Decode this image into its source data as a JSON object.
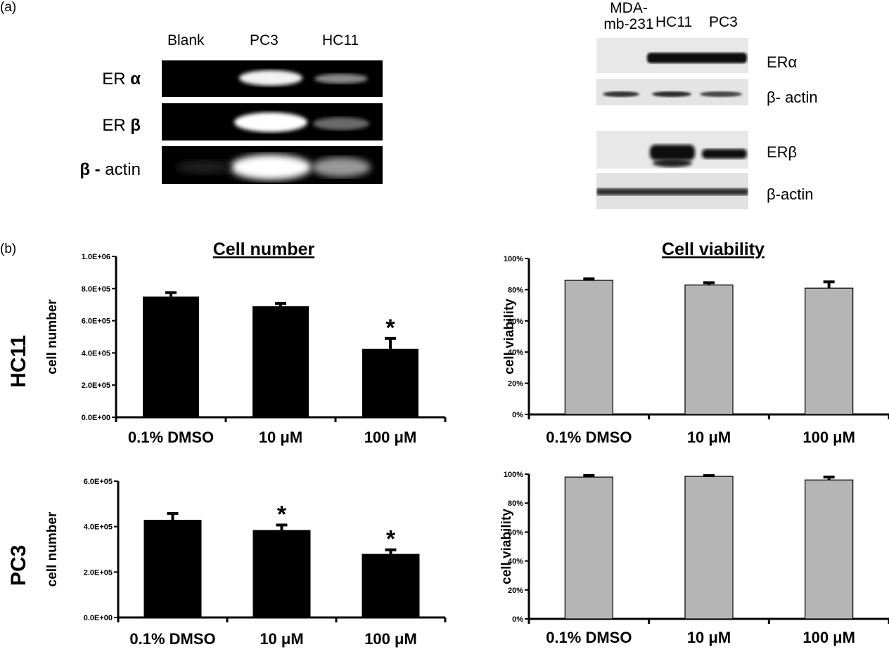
{
  "panel_a_label": "(a)",
  "panel_b_label": "(b)",
  "gel": {
    "lanes": [
      "Blank",
      "PC3",
      "HC11"
    ],
    "rows": [
      {
        "prefix": "ER",
        "greek": "α",
        "suffix": ""
      },
      {
        "prefix": "ER",
        "greek": "β",
        "suffix": ""
      },
      {
        "prefix": "",
        "greek": "β -",
        "suffix": " actin"
      }
    ]
  },
  "western": {
    "lanes": [
      "MDA-\nmb-231",
      "HC11",
      "PC3"
    ],
    "rows": [
      "ERα",
      "β- actin",
      "ERβ",
      "β-actin"
    ]
  },
  "row_labels": [
    "HC11",
    "PC3"
  ],
  "chart_data": [
    {
      "type": "bar",
      "title": "Cell number",
      "ylabel": "cell number",
      "categories": [
        "0.1% DMSO",
        "10 μM",
        "100 μM"
      ],
      "values": [
        750000,
        690000,
        425000
      ],
      "errors": [
        25000,
        18000,
        65000
      ],
      "significant": [
        false,
        false,
        true
      ],
      "ylim": [
        0,
        1000000
      ],
      "yticks": [
        "0.0E+00",
        "2.0E+05",
        "4.0E+05",
        "6.0E+05",
        "8.0E+05",
        "1.0E+06"
      ],
      "color": "#000000"
    },
    {
      "type": "bar",
      "title": "Cell viability",
      "ylabel": "cell viability",
      "categories": [
        "0.1% DMSO",
        "10 μM",
        "100 μM"
      ],
      "values": [
        0.86,
        0.83,
        0.81
      ],
      "errors": [
        0.01,
        0.015,
        0.04
      ],
      "significant": [
        false,
        false,
        false
      ],
      "ylim": [
        0,
        1
      ],
      "yticks": [
        "0%",
        "20%",
        "40%",
        "60%",
        "80%",
        "100%"
      ],
      "color": "#b5b5b5"
    },
    {
      "type": "bar",
      "title": "",
      "ylabel": "cell number",
      "categories": [
        "0.1% DMSO",
        "10 μM",
        "100 μM"
      ],
      "values": [
        430000,
        385000,
        280000
      ],
      "errors": [
        28000,
        22000,
        18000
      ],
      "significant": [
        false,
        true,
        true
      ],
      "ylim": [
        0,
        600000
      ],
      "yticks": [
        "0.0E+00",
        "2.0E+05",
        "4.0E+05",
        "6.0E+05"
      ],
      "color": "#000000"
    },
    {
      "type": "bar",
      "title": "",
      "ylabel": "cell viability",
      "categories": [
        "0.1% DMSO",
        "10 μM",
        "100 μM"
      ],
      "values": [
        0.98,
        0.985,
        0.96
      ],
      "errors": [
        0.01,
        0.005,
        0.02
      ],
      "significant": [
        false,
        false,
        false
      ],
      "ylim": [
        0,
        1
      ],
      "yticks": [
        "0%",
        "20%",
        "40%",
        "60%",
        "80%",
        "100%"
      ],
      "color": "#b5b5b5"
    }
  ],
  "significance_marker": "*"
}
